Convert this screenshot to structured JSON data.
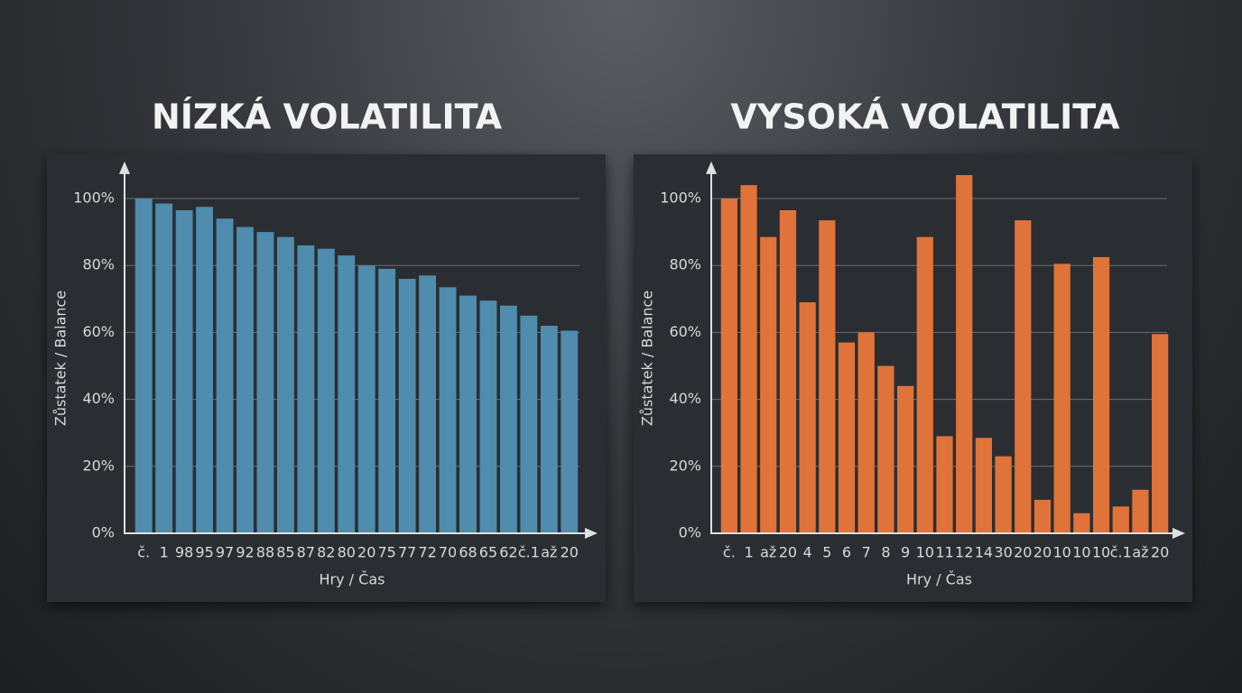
{
  "chart_data": [
    {
      "type": "bar",
      "title": "NÍZKÁ VOLATILITA",
      "x_label": "Hry / Čas",
      "y_label": "Zůstatek / Balance",
      "categories": [
        "č.",
        "1",
        "98",
        "95",
        "97",
        "92",
        "88",
        "85",
        "87",
        "82",
        "80",
        "20",
        "75",
        "77",
        "72",
        "70",
        "68",
        "65",
        "62",
        "č.1",
        "až",
        "20"
      ],
      "values": [
        100,
        98.5,
        96.5,
        97.5,
        94,
        91.5,
        90,
        88.5,
        86,
        85,
        83,
        80,
        79,
        76,
        77,
        73.5,
        71,
        69.5,
        68,
        65,
        62,
        60.5
      ],
      "color": "#4f8cad",
      "ylim": [
        0,
        110
      ],
      "yticks": [
        {
          "value": 0,
          "label": "0%"
        },
        {
          "value": 20,
          "label": "20%"
        },
        {
          "value": 40,
          "label": "40%"
        },
        {
          "value": 60,
          "label": "60%"
        },
        {
          "value": 80,
          "label": "80%"
        },
        {
          "value": 100,
          "label": "100%"
        }
      ],
      "grid": true
    },
    {
      "type": "bar",
      "title": "VYSOKÁ VOLATILITA",
      "x_label": "Hry / Čas",
      "y_label": "Zůstatek / Balance",
      "categories": [
        "č.",
        "1",
        "až",
        "20",
        "4",
        "5",
        "6",
        "7",
        "8",
        "9",
        "10",
        "11",
        "12",
        "14",
        "30",
        "20",
        "20",
        "10",
        "10",
        "10",
        "č.1",
        "až",
        "20"
      ],
      "values": [
        100,
        104,
        88.5,
        96.5,
        69,
        93.5,
        57,
        60,
        50,
        44,
        88.5,
        29,
        107,
        28.5,
        23,
        93.5,
        10,
        80.5,
        6,
        82.5,
        8,
        13,
        59.5
      ],
      "color": "#e0733a",
      "ylim": [
        0,
        110
      ],
      "yticks": [
        {
          "value": 0,
          "label": "0%"
        },
        {
          "value": 20,
          "label": "20%"
        },
        {
          "value": 40,
          "label": "40%"
        },
        {
          "value": 60,
          "label": "60%"
        },
        {
          "value": 80,
          "label": "80%"
        },
        {
          "value": 100,
          "label": "100%"
        }
      ],
      "grid": true
    }
  ]
}
